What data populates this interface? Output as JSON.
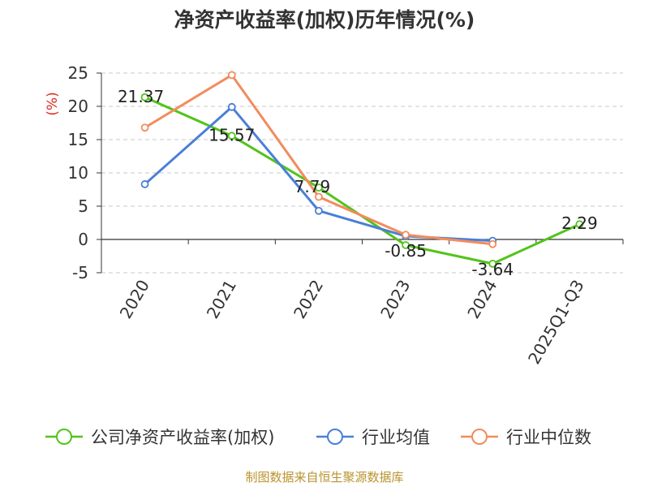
{
  "chart_data": {
    "type": "line",
    "title": "净资产收益率(加权)历年情况(%)",
    "ylabel": "(%)",
    "xlabel": "",
    "categories": [
      "2020",
      "2021",
      "2022",
      "2023",
      "2024",
      "2025Q1-Q3"
    ],
    "ylim": [
      -5,
      25
    ],
    "yticks": [
      25,
      20,
      15,
      10,
      5,
      0,
      -5
    ],
    "grid": true,
    "legend_position": "bottom",
    "series": [
      {
        "name": "公司净资产收益率(加权)",
        "color": "#52c41a",
        "values": [
          21.37,
          15.57,
          7.79,
          -0.85,
          -3.64,
          2.29
        ],
        "labels": [
          "21.37",
          "15.57",
          "7.79",
          "-0.85",
          "-3.64",
          "2.29"
        ]
      },
      {
        "name": "行业均值",
        "color": "#4a7fd6",
        "values": [
          8.3,
          19.9,
          4.3,
          0.5,
          -0.2,
          null
        ]
      },
      {
        "name": "行业中位数",
        "color": "#f28c5c",
        "values": [
          16.8,
          24.7,
          6.4,
          0.7,
          -0.7,
          null
        ]
      }
    ],
    "source": "制图数据来自恒生聚源数据库"
  }
}
